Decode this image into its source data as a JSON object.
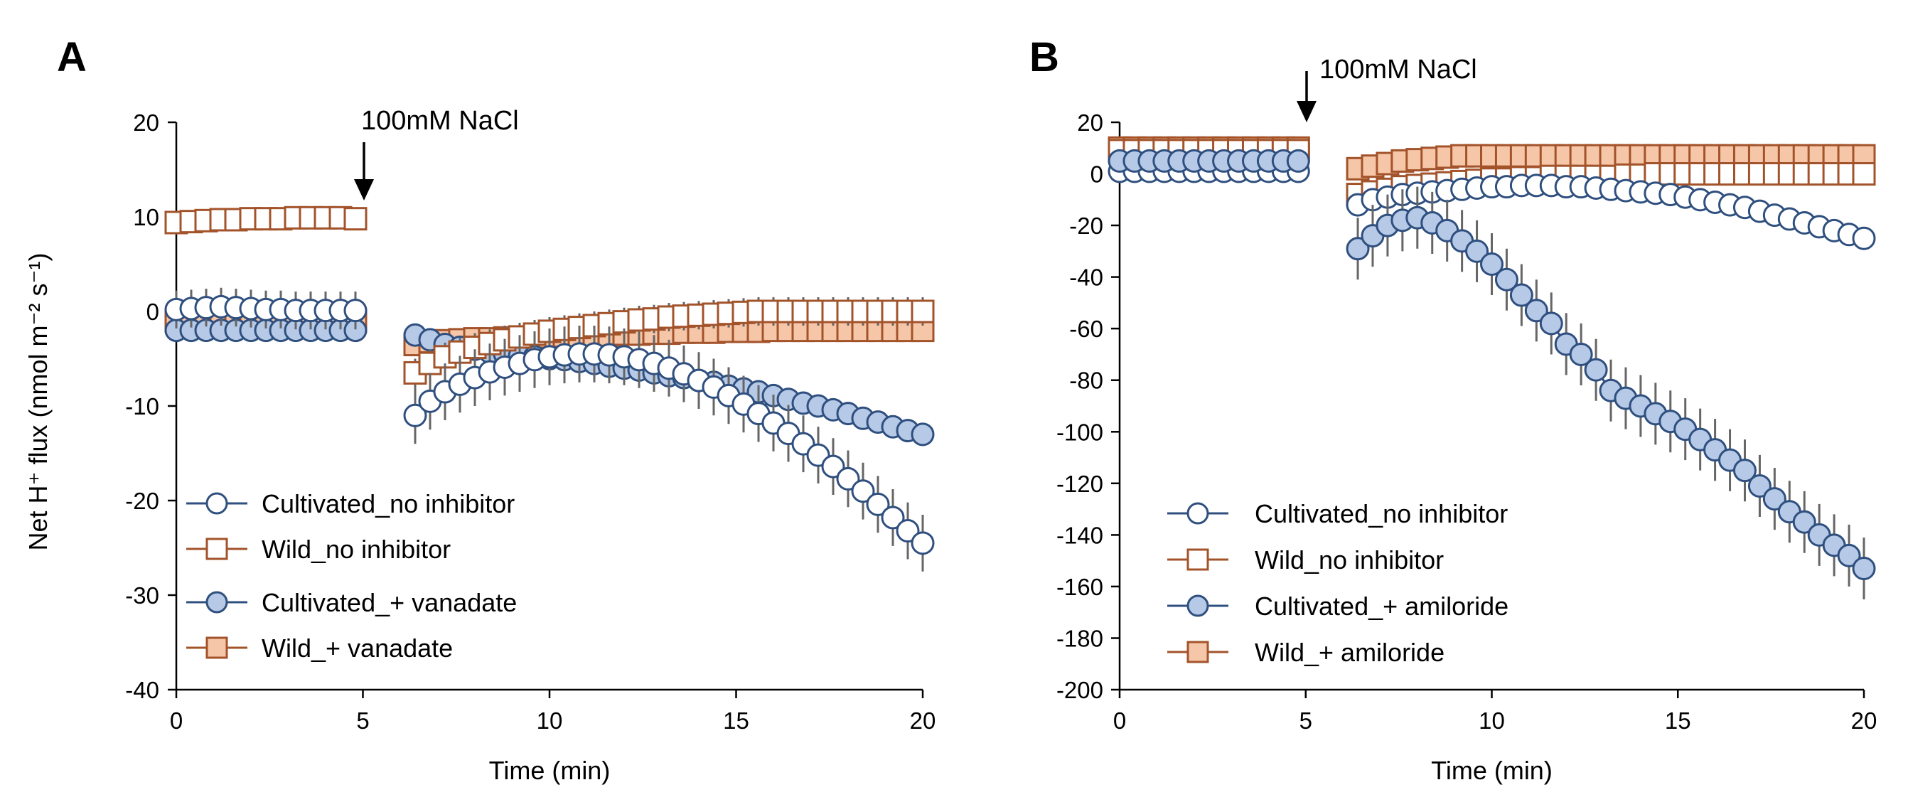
{
  "figure": {
    "panels": [
      "A",
      "B"
    ],
    "shared_ylabel": "Net H⁺ flux (nmol m⁻² s⁻¹)"
  },
  "colors": {
    "blue_stroke": "#2f4f7f",
    "blue_fill": "#b6c9e6",
    "orange_stroke": "#a3532a",
    "orange_fill": "#f6c6a8",
    "errorbar": "#666666",
    "axis": "#000000"
  },
  "chart_data": [
    {
      "panel": "A",
      "type": "scatter",
      "title": "",
      "xlabel": "Time (min)",
      "ylabel": "Net H⁺ flux (nmol m⁻² s⁻¹)",
      "xlim": [
        0,
        20
      ],
      "ylim": [
        -40,
        20
      ],
      "xticks": [
        "0",
        "5",
        "10",
        "15",
        "20"
      ],
      "yticks": [
        "20",
        "10",
        "0",
        "-10",
        "-20",
        "-30",
        "-40"
      ],
      "annotation": {
        "text": "100mM NaCl",
        "x": 5
      },
      "legend_position": "bottom-left",
      "series": [
        {
          "name": "Wild_+ vanadate",
          "marker": "square",
          "filled": true,
          "color": "orange",
          "pre_x": [
            0,
            0.4,
            0.8,
            1.2,
            1.6,
            2.0,
            2.4,
            2.8,
            3.2,
            3.6,
            4.0,
            4.4,
            4.8
          ],
          "pre_y": [
            -1,
            -1,
            -1,
            -1,
            -1,
            -1,
            -1,
            -1,
            -1,
            -1,
            -1,
            -1,
            -1
          ],
          "pre_err": 0.8,
          "post_x": [
            6.4,
            6.8,
            7.2,
            7.6,
            8.0,
            8.4,
            8.8,
            9.2,
            9.6,
            10.0,
            10.4,
            10.8,
            11.2,
            11.6,
            12.0,
            12.4,
            12.8,
            13.2,
            13.6,
            14.0,
            14.4,
            14.8,
            15.2,
            15.6,
            16.0,
            16.4,
            16.8,
            17.2,
            17.6,
            18.0,
            18.4,
            18.8,
            19.2,
            19.6,
            20.0
          ],
          "post_y": [
            -3.5,
            -3.2,
            -3.1,
            -3.0,
            -2.9,
            -2.9,
            -2.8,
            -2.8,
            -2.7,
            -2.7,
            -2.6,
            -2.6,
            -2.5,
            -2.5,
            -2.4,
            -2.4,
            -2.3,
            -2.3,
            -2.2,
            -2.2,
            -2.2,
            -2.1,
            -2.1,
            -2.1,
            -2.0,
            -2.0,
            -2.0,
            -2.0,
            -2.0,
            -2.0,
            -2.0,
            -2.0,
            -2.0,
            -2.0,
            -2.0
          ],
          "post_err": 1.0
        },
        {
          "name": "Cultivated_+ vanadate",
          "marker": "circle",
          "filled": true,
          "color": "blue",
          "pre_x": [
            0,
            0.4,
            0.8,
            1.2,
            1.6,
            2.0,
            2.4,
            2.8,
            3.2,
            3.6,
            4.0,
            4.4,
            4.8
          ],
          "pre_y": [
            -2,
            -2,
            -2,
            -2,
            -2,
            -2,
            -2,
            -2,
            -2,
            -2,
            -2,
            -2,
            -2
          ],
          "pre_err": 0.8,
          "post_x": [
            6.4,
            6.8,
            7.2,
            7.6,
            8.0,
            8.4,
            8.8,
            9.2,
            9.6,
            10.0,
            10.4,
            10.8,
            11.2,
            11.6,
            12.0,
            12.4,
            12.8,
            13.2,
            13.6,
            14.0,
            14.4,
            14.8,
            15.2,
            15.6,
            16.0,
            16.4,
            16.8,
            17.2,
            17.6,
            18.0,
            18.4,
            18.8,
            19.2,
            19.6,
            20.0
          ],
          "post_y": [
            -2.5,
            -3.0,
            -3.5,
            -3.8,
            -4.0,
            -4.3,
            -4.5,
            -4.7,
            -4.8,
            -5.0,
            -5.1,
            -5.3,
            -5.5,
            -5.8,
            -6.0,
            -6.2,
            -6.5,
            -6.8,
            -7.0,
            -7.3,
            -7.5,
            -7.9,
            -8.2,
            -8.5,
            -8.9,
            -9.3,
            -9.7,
            -10.0,
            -10.4,
            -10.8,
            -11.3,
            -11.7,
            -12.2,
            -12.6,
            -13.0
          ],
          "post_err": 0.8
        },
        {
          "name": "Wild_no inhibitor",
          "marker": "square",
          "filled": false,
          "color": "orange",
          "pre_x": [
            0,
            0.4,
            0.8,
            1.2,
            1.6,
            2.0,
            2.4,
            2.8,
            3.2,
            3.6,
            4.0,
            4.4,
            4.8
          ],
          "pre_y": [
            9.4,
            9.5,
            9.6,
            9.7,
            9.7,
            9.8,
            9.8,
            9.8,
            9.9,
            9.9,
            9.9,
            9.9,
            9.8
          ],
          "pre_err": 0.8,
          "post_x": [
            6.4,
            6.8,
            7.2,
            7.6,
            8.0,
            8.4,
            8.8,
            9.2,
            9.6,
            10.0,
            10.4,
            10.8,
            11.2,
            11.6,
            12.0,
            12.4,
            12.8,
            13.2,
            13.6,
            14.0,
            14.4,
            14.8,
            15.2,
            15.6,
            16.0,
            16.4,
            16.8,
            17.2,
            17.6,
            18.0,
            18.4,
            18.8,
            19.2,
            19.6,
            20.0
          ],
          "post_y": [
            -6.5,
            -5.5,
            -4.8,
            -4.3,
            -3.8,
            -3.4,
            -3.0,
            -2.7,
            -2.4,
            -2.1,
            -1.9,
            -1.7,
            -1.5,
            -1.3,
            -1.1,
            -0.9,
            -0.8,
            -0.6,
            -0.5,
            -0.4,
            -0.3,
            -0.2,
            -0.1,
            0,
            0,
            0,
            0,
            0,
            0,
            0,
            0,
            0,
            0,
            0,
            0
          ],
          "post_err": 1.5
        },
        {
          "name": "Cultivated_no inhibitor",
          "marker": "circle",
          "filled": false,
          "color": "blue",
          "pre_x": [
            0,
            0.4,
            0.8,
            1.2,
            1.6,
            2.0,
            2.4,
            2.8,
            3.2,
            3.6,
            4.0,
            4.4,
            4.8
          ],
          "pre_y": [
            0.2,
            0.3,
            0.4,
            0.5,
            0.4,
            0.3,
            0.2,
            0.2,
            0.1,
            0.1,
            0.1,
            0.1,
            0.1
          ],
          "pre_err": 2.0,
          "post_x": [
            6.4,
            6.8,
            7.2,
            7.6,
            8.0,
            8.4,
            8.8,
            9.2,
            9.6,
            10.0,
            10.4,
            10.8,
            11.2,
            11.6,
            12.0,
            12.4,
            12.8,
            13.2,
            13.6,
            14.0,
            14.4,
            14.8,
            15.2,
            15.6,
            16.0,
            16.4,
            16.8,
            17.2,
            17.6,
            18.0,
            18.4,
            18.8,
            19.2,
            19.6,
            20.0
          ],
          "post_y": [
            -11.0,
            -9.5,
            -8.5,
            -7.7,
            -7.0,
            -6.4,
            -5.9,
            -5.5,
            -5.1,
            -4.8,
            -4.6,
            -4.5,
            -4.5,
            -4.6,
            -4.8,
            -5.1,
            -5.5,
            -6.0,
            -6.6,
            -7.3,
            -8.0,
            -8.9,
            -9.8,
            -10.8,
            -11.8,
            -12.9,
            -14.0,
            -15.2,
            -16.4,
            -17.7,
            -19.0,
            -20.4,
            -21.8,
            -23.2,
            -24.5
          ],
          "post_err": 3.0
        }
      ]
    },
    {
      "panel": "B",
      "type": "scatter",
      "title": "",
      "xlabel": "Time (min)",
      "ylabel": "",
      "xlim": [
        0,
        20
      ],
      "ylim": [
        -200,
        20
      ],
      "xticks": [
        "0",
        "5",
        "10",
        "15",
        "20"
      ],
      "yticks": [
        "20",
        "0",
        "-20",
        "-40",
        "-60",
        "-80",
        "-100",
        "-120",
        "-140",
        "-160",
        "-180",
        "-200"
      ],
      "annotation": {
        "text": "100mM NaCl",
        "x": 5
      },
      "legend_position": "bottom-left",
      "series": [
        {
          "name": "Wild_+ amiloride",
          "marker": "square",
          "filled": true,
          "color": "orange",
          "pre_x": [
            0,
            0.4,
            0.8,
            1.2,
            1.6,
            2.0,
            2.4,
            2.8,
            3.2,
            3.6,
            4.0,
            4.4,
            4.8
          ],
          "pre_y": [
            10,
            10,
            10,
            10,
            10,
            10,
            10,
            10,
            10,
            10,
            10,
            10,
            10
          ],
          "pre_err": 2,
          "post_x": [
            6.4,
            6.8,
            7.2,
            7.6,
            8.0,
            8.4,
            8.8,
            9.2,
            9.6,
            10.0,
            10.4,
            10.8,
            11.2,
            11.6,
            12.0,
            12.4,
            12.8,
            13.2,
            13.6,
            14.0,
            14.4,
            14.8,
            15.2,
            15.6,
            16.0,
            16.4,
            16.8,
            17.2,
            17.6,
            18.0,
            18.4,
            18.8,
            19.2,
            19.6,
            20.0
          ],
          "post_y": [
            2,
            3,
            4,
            5,
            5.5,
            6,
            6.5,
            7,
            7,
            7,
            7,
            7,
            7,
            7,
            7,
            7,
            7,
            7,
            7,
            7,
            7,
            7,
            7,
            7,
            7,
            7,
            7,
            7,
            7,
            7,
            7,
            7,
            7,
            7,
            7
          ],
          "post_err": 2
        },
        {
          "name": "Wild_no inhibitor",
          "marker": "square",
          "filled": false,
          "color": "orange",
          "pre_x": [
            0,
            0.4,
            0.8,
            1.2,
            1.6,
            2.0,
            2.4,
            2.8,
            3.2,
            3.6,
            4.0,
            4.4,
            4.8
          ],
          "pre_y": [
            9,
            9,
            9,
            9,
            9,
            9,
            9,
            9,
            9,
            9,
            9,
            9,
            9
          ],
          "pre_err": 2,
          "post_x": [
            6.4,
            6.8,
            7.2,
            7.6,
            8.0,
            8.4,
            8.8,
            9.2,
            9.6,
            10.0,
            10.4,
            10.8,
            11.2,
            11.6,
            12.0,
            12.4,
            12.8,
            13.2,
            13.6,
            14.0,
            14.4,
            14.8,
            15.2,
            15.6,
            16.0,
            16.4,
            16.8,
            17.2,
            17.6,
            18.0,
            18.4,
            18.8,
            19.2,
            19.6,
            20.0
          ],
          "post_y": [
            -8,
            -7,
            -6,
            -5,
            -4.5,
            -4,
            -3.5,
            -3,
            -2.5,
            -2,
            -2,
            -1.5,
            -1.5,
            -1,
            -1,
            -1,
            -1,
            -1,
            -0.5,
            -0.5,
            0,
            0,
            0,
            0,
            0,
            0,
            0,
            0,
            0,
            0,
            0,
            0,
            0,
            0,
            0
          ],
          "post_err": 2
        },
        {
          "name": "Cultivated_no inhibitor",
          "marker": "circle",
          "filled": false,
          "color": "blue",
          "pre_x": [
            0,
            0.4,
            0.8,
            1.2,
            1.6,
            2.0,
            2.4,
            2.8,
            3.2,
            3.6,
            4.0,
            4.4,
            4.8
          ],
          "pre_y": [
            1,
            1,
            1,
            1,
            1,
            1,
            1,
            1,
            1,
            1,
            1,
            1,
            1
          ],
          "pre_err": 2,
          "post_x": [
            6.4,
            6.8,
            7.2,
            7.6,
            8.0,
            8.4,
            8.8,
            9.2,
            9.6,
            10.0,
            10.4,
            10.8,
            11.2,
            11.6,
            12.0,
            12.4,
            12.8,
            13.2,
            13.6,
            14.0,
            14.4,
            14.8,
            15.2,
            15.6,
            16.0,
            16.4,
            16.8,
            17.2,
            17.6,
            18.0,
            18.4,
            18.8,
            19.2,
            19.6,
            20.0
          ],
          "post_y": [
            -12,
            -10,
            -9,
            -8,
            -7.5,
            -7,
            -6.5,
            -6,
            -5.5,
            -5,
            -5,
            -4.5,
            -4.5,
            -4.5,
            -5,
            -5,
            -5.5,
            -6,
            -6.5,
            -7,
            -7.5,
            -8,
            -9,
            -10,
            -11,
            -12,
            -13,
            -14.5,
            -16,
            -17.5,
            -19,
            -20.5,
            -22,
            -23.5,
            -25
          ],
          "post_err": 2
        },
        {
          "name": "Cultivated_+ amiloride",
          "marker": "circle",
          "filled": true,
          "color": "blue",
          "pre_x": [
            0,
            0.4,
            0.8,
            1.2,
            1.6,
            2.0,
            2.4,
            2.8,
            3.2,
            3.6,
            4.0,
            4.4,
            4.8
          ],
          "pre_y": [
            5,
            5,
            5,
            5,
            5,
            5,
            5,
            5,
            5,
            5,
            5,
            5,
            5
          ],
          "pre_err": 2,
          "post_x": [
            6.4,
            6.8,
            7.2,
            7.6,
            8.0,
            8.4,
            8.8,
            9.2,
            9.6,
            10.0,
            10.4,
            10.8,
            11.2,
            11.6,
            12.0,
            12.4,
            12.8,
            13.2,
            13.6,
            14.0,
            14.4,
            14.8,
            15.2,
            15.6,
            16.0,
            16.4,
            16.8,
            17.2,
            17.6,
            18.0,
            18.4,
            18.8,
            19.2,
            19.6,
            20.0
          ],
          "post_y": [
            -29,
            -24,
            -20,
            -18,
            -17,
            -19,
            -22,
            -26,
            -30,
            -35,
            -41,
            -47,
            -53,
            -58,
            -66,
            -70,
            -76,
            -84,
            -87,
            -90,
            -93,
            -96,
            -99,
            -103,
            -107,
            -111,
            -115,
            -121,
            -126,
            -131,
            -135,
            -140,
            -144,
            -148,
            -153
          ],
          "post_err": 12
        }
      ]
    }
  ]
}
